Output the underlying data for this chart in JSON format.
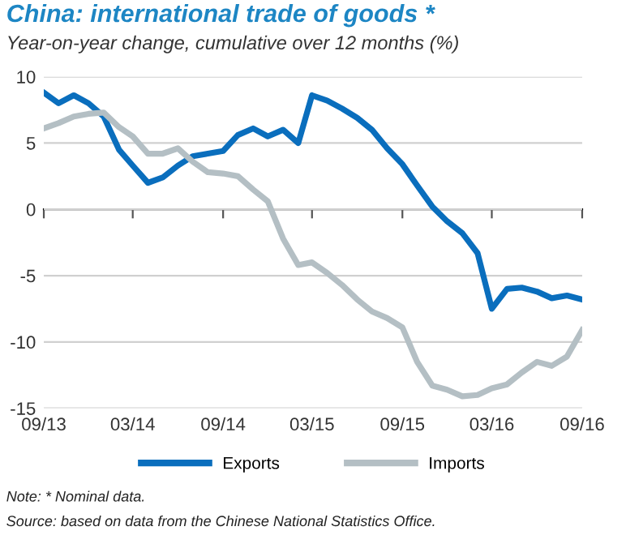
{
  "chart_data": {
    "type": "line",
    "title": "China: international trade of goods *",
    "subtitle": "Year-on-year change, cumulative over 12 months (%)",
    "x": [
      "2013-09",
      "2013-10",
      "2013-11",
      "2013-12",
      "2014-01",
      "2014-02",
      "2014-03",
      "2014-04",
      "2014-05",
      "2014-06",
      "2014-07",
      "2014-08",
      "2014-09",
      "2014-10",
      "2014-11",
      "2014-12",
      "2015-01",
      "2015-02",
      "2015-03",
      "2015-04",
      "2015-05",
      "2015-06",
      "2015-07",
      "2015-08",
      "2015-09",
      "2015-10",
      "2015-11",
      "2015-12",
      "2016-01",
      "2016-02",
      "2016-03",
      "2016-04",
      "2016-05",
      "2016-06",
      "2016-07",
      "2016-08",
      "2016-09"
    ],
    "series": [
      {
        "name": "Exports",
        "color": "#0a6ebd",
        "values": [
          8.8,
          8.0,
          8.6,
          8.0,
          7.0,
          4.5,
          3.3,
          2.0,
          2.4,
          3.3,
          4.0,
          4.2,
          4.4,
          5.6,
          6.1,
          5.5,
          6.0,
          5.0,
          8.6,
          8.2,
          7.6,
          6.9,
          6.0,
          4.6,
          3.4,
          1.8,
          0.2,
          -0.9,
          -1.8,
          -3.3,
          -7.5,
          -6.0,
          -5.9,
          -6.2,
          -6.7,
          -6.5,
          -6.8
        ]
      },
      {
        "name": "Imports",
        "color": "#b4bfc4",
        "values": [
          6.1,
          6.5,
          7.0,
          7.2,
          7.3,
          6.2,
          5.5,
          4.2,
          4.2,
          4.6,
          3.6,
          2.8,
          2.7,
          2.5,
          1.5,
          0.6,
          -2.2,
          -4.2,
          -4.0,
          -4.8,
          -5.7,
          -6.8,
          -7.7,
          -8.2,
          -8.9,
          -11.5,
          -13.3,
          -13.6,
          -14.1,
          -14.0,
          -13.5,
          -13.2,
          -12.3,
          -11.5,
          -11.8,
          -11.1,
          -9.1
        ]
      }
    ],
    "xlim": [
      "2013-09",
      "2016-09"
    ],
    "xticks": [
      {
        "value": "2013-09",
        "label": "09/13"
      },
      {
        "value": "2014-03",
        "label": "03/14"
      },
      {
        "value": "2014-09",
        "label": "09/14"
      },
      {
        "value": "2015-03",
        "label": "03/15"
      },
      {
        "value": "2015-09",
        "label": "09/15"
      },
      {
        "value": "2016-03",
        "label": "03/16"
      },
      {
        "value": "2016-09",
        "label": "09/16"
      }
    ],
    "ylim": [
      -15,
      10
    ],
    "yticks": [
      -15,
      -10,
      -5,
      0,
      5,
      10
    ],
    "grid": "y",
    "legend": "bottom",
    "annotations": [
      "Note: * Nominal data.",
      "Source: based on data from the Chinese National Statistics Office."
    ]
  }
}
